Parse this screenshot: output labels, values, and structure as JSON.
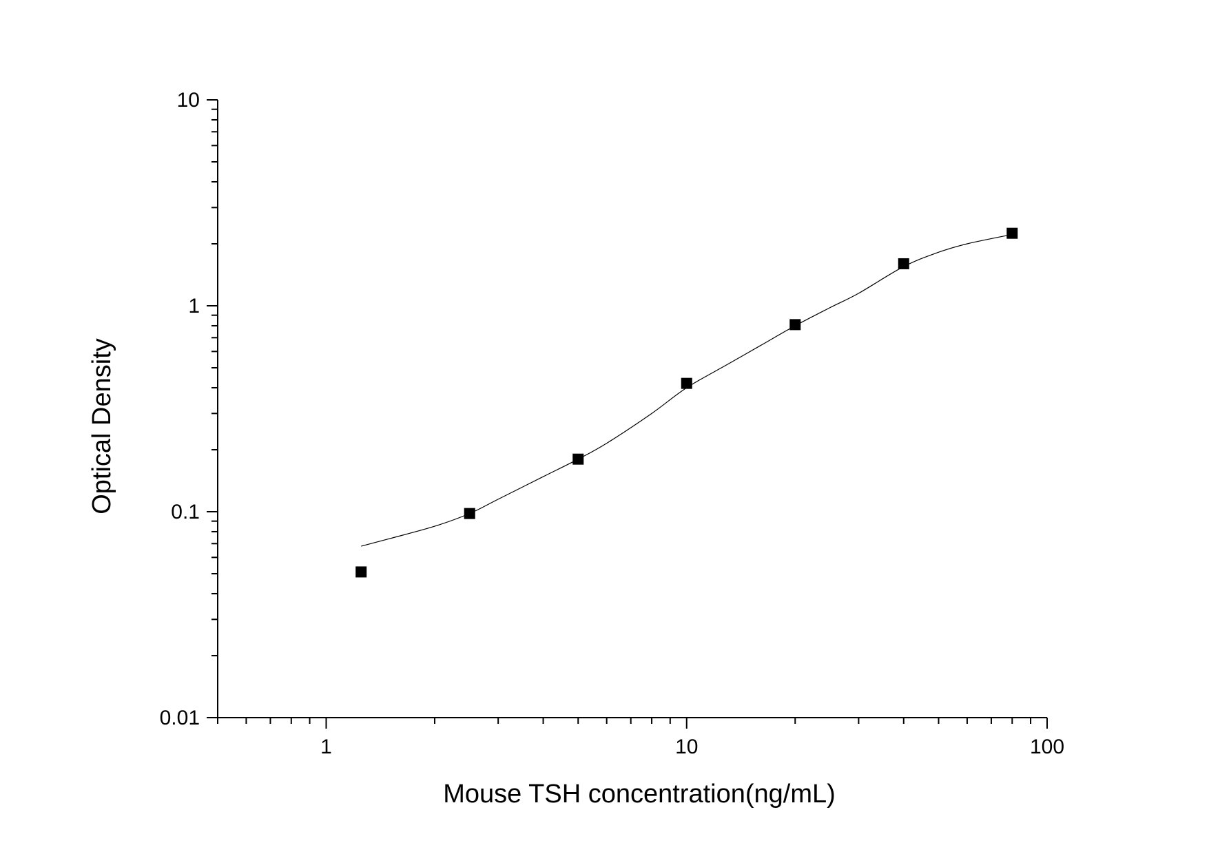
{
  "chart_data": {
    "type": "scatter",
    "x_scale": "log",
    "y_scale": "log",
    "xlabel": "Mouse TSH concentration(ng/mL)",
    "ylabel": "Optical Density",
    "xlim": [
      0.5,
      100
    ],
    "ylim": [
      0.01,
      10
    ],
    "x_ticks": [
      {
        "value": 1,
        "label": "1"
      },
      {
        "value": 10,
        "label": "10"
      },
      {
        "value": 100,
        "label": "100"
      }
    ],
    "y_ticks": [
      {
        "value": 0.01,
        "label": "0.01"
      },
      {
        "value": 0.1,
        "label": "0.1"
      },
      {
        "value": 1,
        "label": "1"
      },
      {
        "value": 10,
        "label": "10"
      }
    ],
    "grid": false,
    "series": [
      {
        "kind": "points",
        "marker": "square",
        "color": "#000000",
        "x": [
          1.25,
          2.5,
          5,
          10,
          20,
          40,
          80
        ],
        "y": [
          0.051,
          0.098,
          0.18,
          0.42,
          0.81,
          1.6,
          2.25
        ]
      },
      {
        "kind": "fit-curve",
        "color": "#000000",
        "x": [
          1.25,
          1.5,
          2,
          2.5,
          3,
          4,
          5,
          6,
          8,
          10,
          13,
          16,
          20,
          25,
          30,
          40,
          50,
          60,
          80
        ],
        "y": [
          0.068,
          0.074,
          0.085,
          0.098,
          0.115,
          0.148,
          0.18,
          0.215,
          0.3,
          0.4,
          0.52,
          0.64,
          0.8,
          0.98,
          1.15,
          1.55,
          1.82,
          2.0,
          2.22
        ]
      }
    ]
  }
}
